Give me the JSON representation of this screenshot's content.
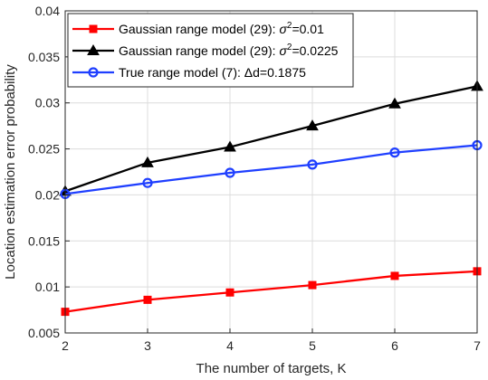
{
  "chart_data": {
    "type": "line",
    "title": "",
    "xlabel": "The number of targets, K",
    "ylabel": "Location estimation error probability",
    "x": [
      2,
      3,
      4,
      5,
      6,
      7
    ],
    "xlim": [
      2,
      7
    ],
    "ylim": [
      0.005,
      0.04
    ],
    "xticks": [
      "2",
      "3",
      "4",
      "5",
      "6",
      "7"
    ],
    "yticks": [
      "0.005",
      "0.01",
      "0.015",
      "0.02",
      "0.025",
      "0.03",
      "0.035",
      "0.04"
    ],
    "grid": true,
    "legend_position": "top-left",
    "series": [
      {
        "name": "Gaussian range model (29): σ²=0.01",
        "label_main": "Gaussian range model (29): ",
        "label_sup": "2",
        "label_tail": "=0.01",
        "color": "#ff0000",
        "marker": "square",
        "values": [
          0.0073,
          0.0086,
          0.0094,
          0.0102,
          0.0112,
          0.0117
        ]
      },
      {
        "name": "Gaussian range model (29): σ²=0.0225",
        "label_main": "Gaussian range model (29): ",
        "label_sup": "2",
        "label_tail": "=0.0225",
        "color": "#000000",
        "marker": "triangle",
        "values": [
          0.0204,
          0.0235,
          0.0252,
          0.0275,
          0.0299,
          0.0318
        ]
      },
      {
        "name": "True range model (7): Δd=0.1875",
        "label_main": "True range model (7): Δd=0.1875",
        "label_sup": "",
        "label_tail": "",
        "color": "#1f3fff",
        "marker": "circle",
        "values": [
          0.0201,
          0.0213,
          0.0224,
          0.0233,
          0.0246,
          0.0254
        ]
      }
    ]
  }
}
